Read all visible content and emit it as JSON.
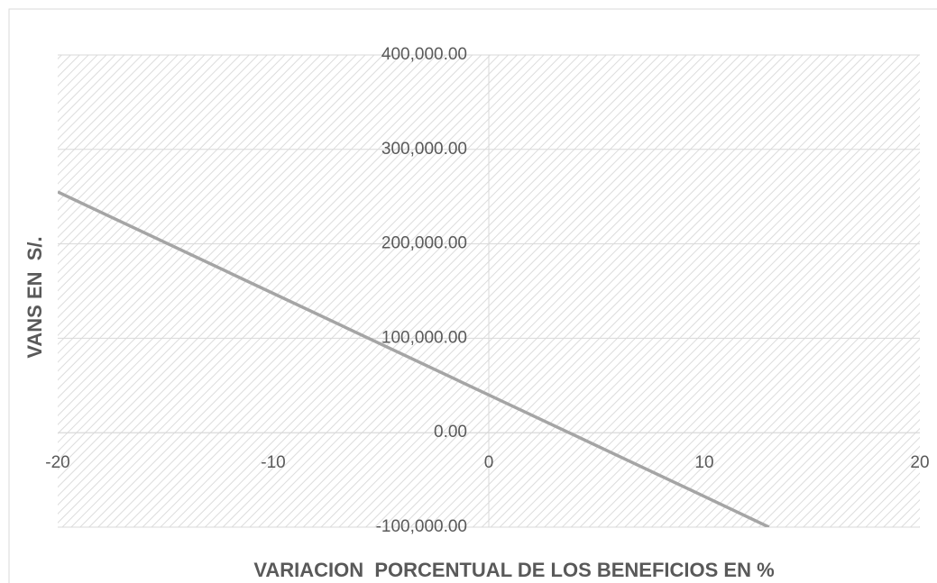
{
  "chart_data": {
    "type": "line",
    "x_label": "VARIACION  PORCENTUAL DE LOS BENEFICIOS EN %",
    "y_label": "VANS EN  S/.",
    "x": [
      -20,
      -10,
      0,
      10,
      13
    ],
    "series": [
      {
        "color": "#a5a5a5",
        "values": [
          255000,
          147500,
          40000,
          -67500,
          -100000
        ]
      }
    ],
    "xlim": [
      -20,
      20
    ],
    "xticks": [
      -20,
      -10,
      0,
      10,
      20
    ],
    "ylim": [
      -100000,
      400000
    ],
    "yticks": [
      {
        "value": -100000,
        "label": "-100,000.00"
      },
      {
        "value": 0,
        "label": "0.00"
      },
      {
        "value": 100000,
        "label": "100,000.00"
      },
      {
        "value": 200000,
        "label": "200,000.00"
      },
      {
        "value": 300000,
        "label": "300,000.00"
      },
      {
        "value": 400000,
        "label": "400,000.00"
      }
    ],
    "grid": true
  }
}
